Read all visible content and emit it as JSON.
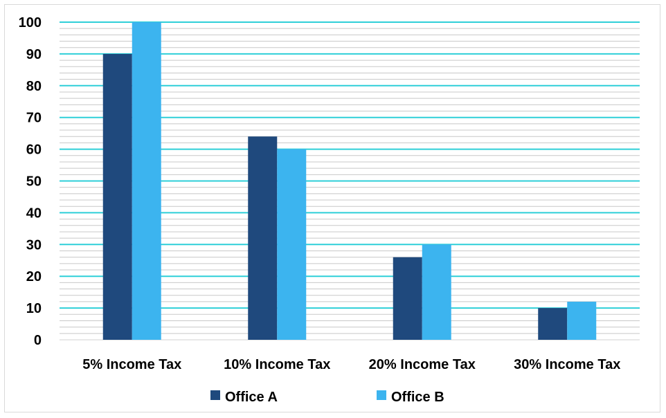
{
  "chart_data": {
    "type": "bar",
    "categories": [
      "5% Income Tax",
      "10% Income Tax",
      "20% Income Tax",
      "30% Income Tax"
    ],
    "series": [
      {
        "name": "Office A",
        "values": [
          90,
          64,
          26,
          10
        ],
        "color": "#1f497d"
      },
      {
        "name": "Office B",
        "values": [
          100,
          60,
          30,
          12
        ],
        "color": "#3cb4ef"
      }
    ],
    "title": "",
    "xlabel": "",
    "ylabel": "",
    "ylim": [
      0,
      100
    ],
    "yticks": [
      "0",
      "10",
      "20",
      "30",
      "40",
      "50",
      "60",
      "70",
      "80",
      "90",
      "100"
    ],
    "grid": true,
    "major_grid_color": "#2ecfd8",
    "minor_grid_color": "#c8c8c8",
    "legend_position": "bottom"
  }
}
